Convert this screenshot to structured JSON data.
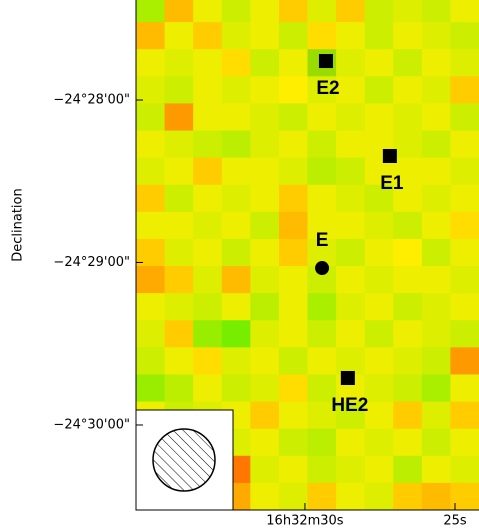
{
  "chart_data": {
    "type": "image",
    "y_label": "Declination",
    "xlim": [
      35.63,
      24.2
    ],
    "ylim": [
      -24.50872,
      -24.45641
    ],
    "xticks": [
      {
        "value": 30,
        "label": "16h32m30s"
      },
      {
        "value": 25,
        "label": "25s"
      }
    ],
    "yticks": [
      {
        "value": -24.46667,
        "label": "−24°28'00\""
      },
      {
        "value": -24.48333,
        "label": "−24°29'00\""
      },
      {
        "value": -24.5,
        "label": "−24°30'00\""
      }
    ],
    "image_colors": [
      [
        "#aaee00",
        "#ffbb00",
        "#eeee00",
        "#ccee00",
        "#eeee00",
        "#ffcc00",
        "#ddee00",
        "#ffcc00",
        "#ccee00",
        "#ddee00",
        "#ccee00",
        "#eeee00"
      ],
      [
        "#ffbb00",
        "#eeee00",
        "#ffcc00",
        "#ddee00",
        "#eeee00",
        "#ccee00",
        "#ffdd00",
        "#eeee00",
        "#ccee00",
        "#eeee00",
        "#ddee00",
        "#ccee00"
      ],
      [
        "#eeee00",
        "#ddee00",
        "#eeee00",
        "#ffdd00",
        "#ccee00",
        "#eeee00",
        "#99dd00",
        "#ddee00",
        "#eeee00",
        "#ccee00",
        "#eeee00",
        "#ddee00"
      ],
      [
        "#ddee00",
        "#ccee00",
        "#eeee00",
        "#ddee00",
        "#eeee00",
        "#ffee00",
        "#ddee00",
        "#eeee00",
        "#ccee00",
        "#eeee00",
        "#ddee00",
        "#ffcc00"
      ],
      [
        "#ccee00",
        "#ff9900",
        "#eeee00",
        "#eeee00",
        "#ddee00",
        "#ccee00",
        "#eeee00",
        "#ddee00",
        "#eeee00",
        "#ddee00",
        "#eeee00",
        "#ccee00"
      ],
      [
        "#eeee00",
        "#ddee00",
        "#ccee00",
        "#bbee00",
        "#ddee00",
        "#eeee00",
        "#ccee00",
        "#eeee00",
        "#eeee00",
        "#ddee00",
        "#ccee00",
        "#eeee00"
      ],
      [
        "#ddee00",
        "#eeee00",
        "#ffcc00",
        "#eeee00",
        "#eeee00",
        "#ddee00",
        "#bbee00",
        "#ccee00",
        "#eeee00",
        "#eeee00",
        "#eeee00",
        "#ddee00"
      ],
      [
        "#ffcc00",
        "#ccee00",
        "#eeee00",
        "#ddee00",
        "#eeee00",
        "#ffcc00",
        "#eeee00",
        "#ddee00",
        "#ccee00",
        "#eeee00",
        "#ddee00",
        "#eeee00"
      ],
      [
        "#eeee00",
        "#eeee00",
        "#ddee00",
        "#eeee00",
        "#ccee00",
        "#ffbb00",
        "#eeee00",
        "#eeee00",
        "#ddee00",
        "#ccee00",
        "#eeee00",
        "#ffdd00"
      ],
      [
        "#ffcc00",
        "#ddee00",
        "#eeee00",
        "#ccee00",
        "#eeee00",
        "#ffcc00",
        "#ddee00",
        "#ccee00",
        "#eeee00",
        "#ffee00",
        "#ccee00",
        "#eeee00"
      ],
      [
        "#ffaa00",
        "#ffcc00",
        "#ddee00",
        "#ffbb00",
        "#ddee00",
        "#eeee00",
        "#ccee00",
        "#eeee00",
        "#ddee00",
        "#eeee00",
        "#eeee00",
        "#ddee00"
      ],
      [
        "#eeee00",
        "#ddee00",
        "#ccee00",
        "#eeee00",
        "#bbee00",
        "#eeee00",
        "#aaee00",
        "#ddee00",
        "#eeee00",
        "#ccee00",
        "#ddee00",
        "#eeee00"
      ],
      [
        "#ddee00",
        "#ffcc00",
        "#99ee00",
        "#77ee00",
        "#ddee00",
        "#eeee00",
        "#ccee00",
        "#eeee00",
        "#ccee00",
        "#eeee00",
        "#ddee00",
        "#ccee00"
      ],
      [
        "#ccee00",
        "#eeee00",
        "#ffdd00",
        "#ddee00",
        "#eeee00",
        "#ccee00",
        "#eeee00",
        "#ddee00",
        "#eeee00",
        "#ddee00",
        "#ccee00",
        "#ff9900"
      ],
      [
        "#99ee00",
        "#bbee00",
        "#eeee00",
        "#ccee00",
        "#ddee00",
        "#ffdd00",
        "#ccee00",
        "#eeee00",
        "#ddee00",
        "#ccee00",
        "#aaee00",
        "#eeee00"
      ],
      [
        "#eeee00",
        "#ccee00",
        "#ddee00",
        "#eeee00",
        "#ffcc00",
        "#eeee00",
        "#ddee00",
        "#ccee00",
        "#eeee00",
        "#ffcc00",
        "#ddee00",
        "#ffcc00"
      ],
      [
        "#ddee00",
        "#eeee00",
        "#ccee00",
        "#ddee00",
        "#eeee00",
        "#ccee00",
        "#bbee00",
        "#eeee00",
        "#ddee00",
        "#eeee00",
        "#ccee00",
        "#eeee00"
      ],
      [
        "#eeee00",
        "#ddee00",
        "#eeee00",
        "#ff7700",
        "#ddee00",
        "#eeee00",
        "#ccee00",
        "#ddee00",
        "#eeee00",
        "#bbee00",
        "#eeee00",
        "#ddee00"
      ],
      [
        "#ccee00",
        "#eeee00",
        "#ffcc00",
        "#ffaa00",
        "#eeee00",
        "#ddee00",
        "#ffcc00",
        "#eeee00",
        "#ddee00",
        "#ffcc00",
        "#ffbb00",
        "#ffcc00"
      ]
    ],
    "points": [
      {
        "label": "E2",
        "x": 29.3,
        "y": -24.46267,
        "marker": "square"
      },
      {
        "label": "E1",
        "x": 27.17,
        "y": -24.47241,
        "marker": "square"
      },
      {
        "label": "E",
        "x": 29.43,
        "y": -24.4839,
        "marker": "circle"
      },
      {
        "label": "HE2",
        "x": 28.57,
        "y": -24.49518,
        "marker": "square"
      }
    ],
    "point_color": "#000000"
  }
}
